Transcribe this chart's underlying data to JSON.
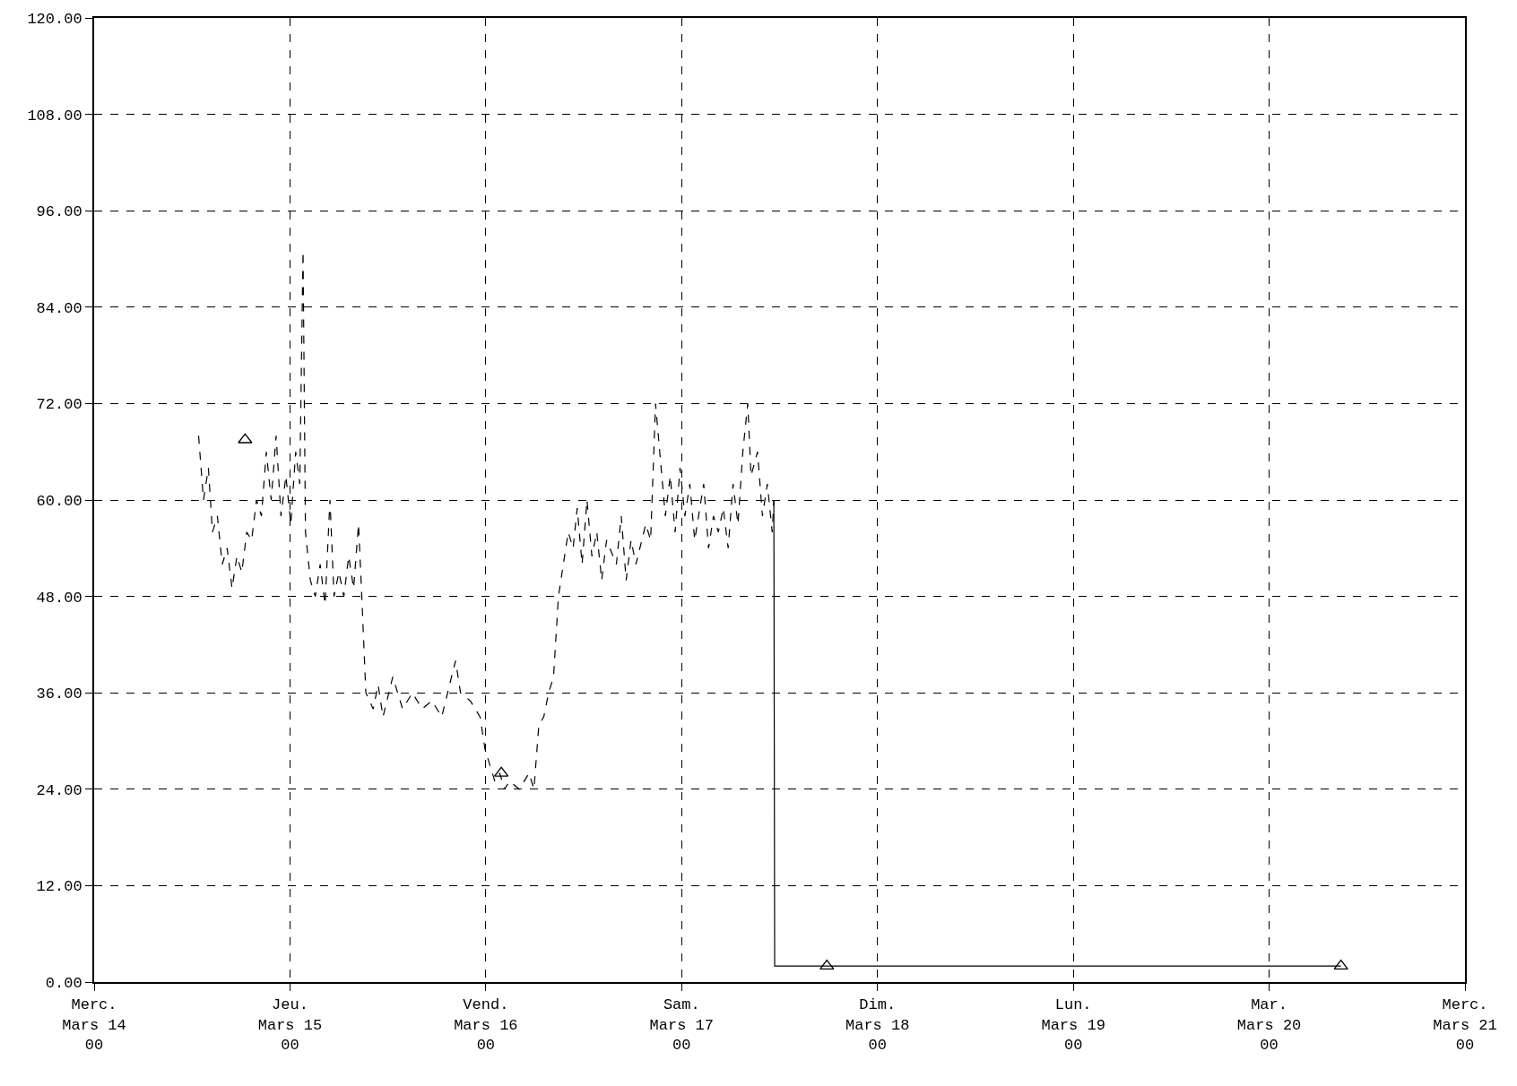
{
  "chart_data": {
    "type": "line",
    "xlim": [
      "--03-14T00:00",
      "--03-21T00:00"
    ],
    "ylim": [
      0,
      120
    ],
    "xticks": [
      {
        "value": "--03-14T00:00",
        "label": "Merc.\nMars 14\n00"
      },
      {
        "value": "--03-15T00:00",
        "label": "Jeu.\nMars 15\n00"
      },
      {
        "value": "--03-16T00:00",
        "label": "Vend.\nMars 16\n00"
      },
      {
        "value": "--03-17T00:00",
        "label": "Sam.\nMars 17\n00"
      },
      {
        "value": "--03-18T00:00",
        "label": "Dim.\nMars 18\n00"
      },
      {
        "value": "--03-19T00:00",
        "label": "Lun.\nMars 19\n00"
      },
      {
        "value": "--03-20T00:00",
        "label": "Mar.\nMars 20\n00"
      },
      {
        "value": "--03-21T00:00",
        "label": "Merc.\nMars 21\n00"
      }
    ],
    "yticks": [
      {
        "value": 0,
        "label": "0.00"
      },
      {
        "value": 12,
        "label": "12.00"
      },
      {
        "value": 24,
        "label": "24.00"
      },
      {
        "value": 36,
        "label": "36.00"
      },
      {
        "value": 48,
        "label": "48.00"
      },
      {
        "value": 60,
        "label": "60.00"
      },
      {
        "value": 72,
        "label": "72.00"
      },
      {
        "value": 84,
        "label": "84.00"
      },
      {
        "value": 96,
        "label": "96.00"
      },
      {
        "value": 108,
        "label": "108.00"
      },
      {
        "value": 120,
        "label": "120.00"
      }
    ],
    "grid": true,
    "series": [
      {
        "color": "#000000",
        "line_style": "dashed",
        "marker": "none",
        "x": [
          "--03-14T12:48",
          "--03-14T13:24",
          "--03-14T14:00",
          "--03-14T14:30",
          "--03-14T15:06",
          "--03-14T15:42",
          "--03-14T16:18",
          "--03-14T16:54",
          "--03-14T17:30",
          "--03-14T18:06",
          "--03-14T18:42",
          "--03-14T19:18",
          "--03-14T19:54",
          "--03-14T20:30",
          "--03-14T21:06",
          "--03-14T21:42",
          "--03-14T22:18",
          "--03-14T22:54",
          "--03-14T23:30",
          "--03-15T00:06",
          "--03-15T00:42",
          "--03-15T01:12",
          "--03-15T01:36",
          "--03-15T01:54",
          "--03-15T02:30",
          "--03-15T03:06",
          "--03-15T03:42",
          "--03-15T04:18",
          "--03-15T04:54",
          "--03-15T05:24",
          "--03-15T06:00",
          "--03-15T06:36",
          "--03-15T07:12",
          "--03-15T07:48",
          "--03-15T08:24",
          "--03-15T08:48",
          "--03-15T09:18",
          "--03-15T10:12",
          "--03-15T10:48",
          "--03-15T11:24",
          "--03-15T12:36",
          "--03-15T13:48",
          "--03-15T15:00",
          "--03-15T16:12",
          "--03-15T17:24",
          "--03-15T18:36",
          "--03-15T19:48",
          "--03-15T20:18",
          "--03-15T20:54",
          "--03-15T22:06",
          "--03-15T23:18",
          "--03-15T23:54",
          "--03-16T00:30",
          "--03-16T01:06",
          "--03-16T01:42",
          "--03-16T02:18",
          "--03-16T02:54",
          "--03-16T04:06",
          "--03-16T05:18",
          "--03-16T05:54",
          "--03-16T06:30",
          "--03-16T07:06",
          "--03-16T07:42",
          "--03-16T08:18",
          "--03-16T08:54",
          "--03-16T09:30",
          "--03-16T10:06",
          "--03-16T10:42",
          "--03-16T11:12",
          "--03-16T11:48",
          "--03-16T12:24",
          "--03-16T13:00",
          "--03-16T13:36",
          "--03-16T14:12",
          "--03-16T14:48",
          "--03-16T16:00",
          "--03-16T16:36",
          "--03-16T17:12",
          "--03-16T17:48",
          "--03-16T18:24",
          "--03-16T19:36",
          "--03-16T20:12",
          "--03-16T20:48",
          "--03-16T21:24",
          "--03-16T22:00",
          "--03-16T22:36",
          "--03-16T23:12",
          "--03-16T23:48",
          "--03-17T00:24",
          "--03-17T01:00",
          "--03-17T01:36",
          "--03-17T02:42",
          "--03-17T03:18",
          "--03-17T03:54",
          "--03-17T04:30",
          "--03-17T05:06",
          "--03-17T05:42",
          "--03-17T06:18",
          "--03-17T06:54",
          "--03-17T07:30",
          "--03-17T08:06",
          "--03-17T08:30",
          "--03-17T09:18",
          "--03-17T09:54",
          "--03-17T10:30",
          "--03-17T11:06",
          "--03-17T11:18"
        ],
        "values": [
          68,
          60,
          64,
          56,
          58,
          52,
          54,
          49,
          53,
          51,
          56,
          55,
          60,
          58,
          66,
          60,
          68,
          58,
          63,
          57,
          66,
          62,
          91,
          56,
          50,
          48,
          52,
          47,
          60,
          48,
          51,
          48,
          53,
          49,
          57,
          48,
          36,
          34,
          37,
          33,
          38,
          34,
          36,
          34,
          35,
          33,
          38,
          40,
          36,
          35,
          33,
          29,
          27,
          25,
          26,
          24,
          25,
          24,
          26,
          24,
          32,
          33,
          36,
          38,
          48,
          52,
          56,
          54,
          59,
          52,
          60,
          53,
          56,
          50,
          55,
          52,
          58,
          50,
          55,
          52,
          57,
          55,
          72,
          65,
          58,
          63,
          56,
          64,
          58,
          62,
          55,
          62,
          54,
          58,
          56,
          59,
          54,
          62,
          57,
          66,
          72,
          63,
          66,
          58,
          62,
          56,
          60
        ]
      },
      {
        "color": "#000000",
        "line_style": "solid",
        "marker": "none",
        "x": [
          "--03-17T11:18",
          "--03-17T11:24",
          "--03-20T08:48"
        ],
        "values": [
          60,
          2,
          2
        ]
      },
      {
        "type": "scatter",
        "color": "#000000",
        "marker": "triangle",
        "x": [
          "--03-14T18:30",
          "--03-16T01:54",
          "--03-17T17:48",
          "--03-20T08:48"
        ],
        "values": [
          67.5,
          26,
          2,
          2
        ]
      }
    ]
  }
}
